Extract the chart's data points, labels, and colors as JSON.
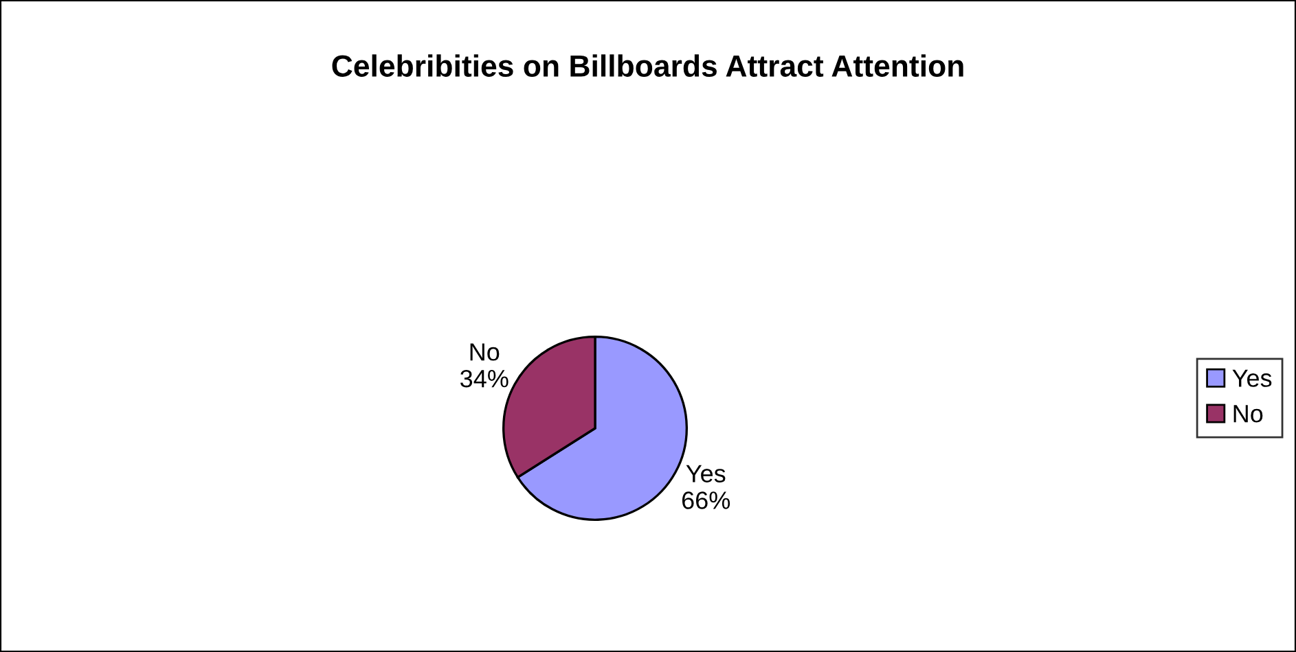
{
  "chart_data": {
    "type": "pie",
    "title": "Celebribities on Billboards Attract Attention",
    "categories": [
      "Yes",
      "No"
    ],
    "values": [
      66,
      34
    ],
    "value_labels": [
      "66%",
      "34%"
    ],
    "colors": [
      "#9999ff",
      "#993366"
    ],
    "legend": "right"
  }
}
